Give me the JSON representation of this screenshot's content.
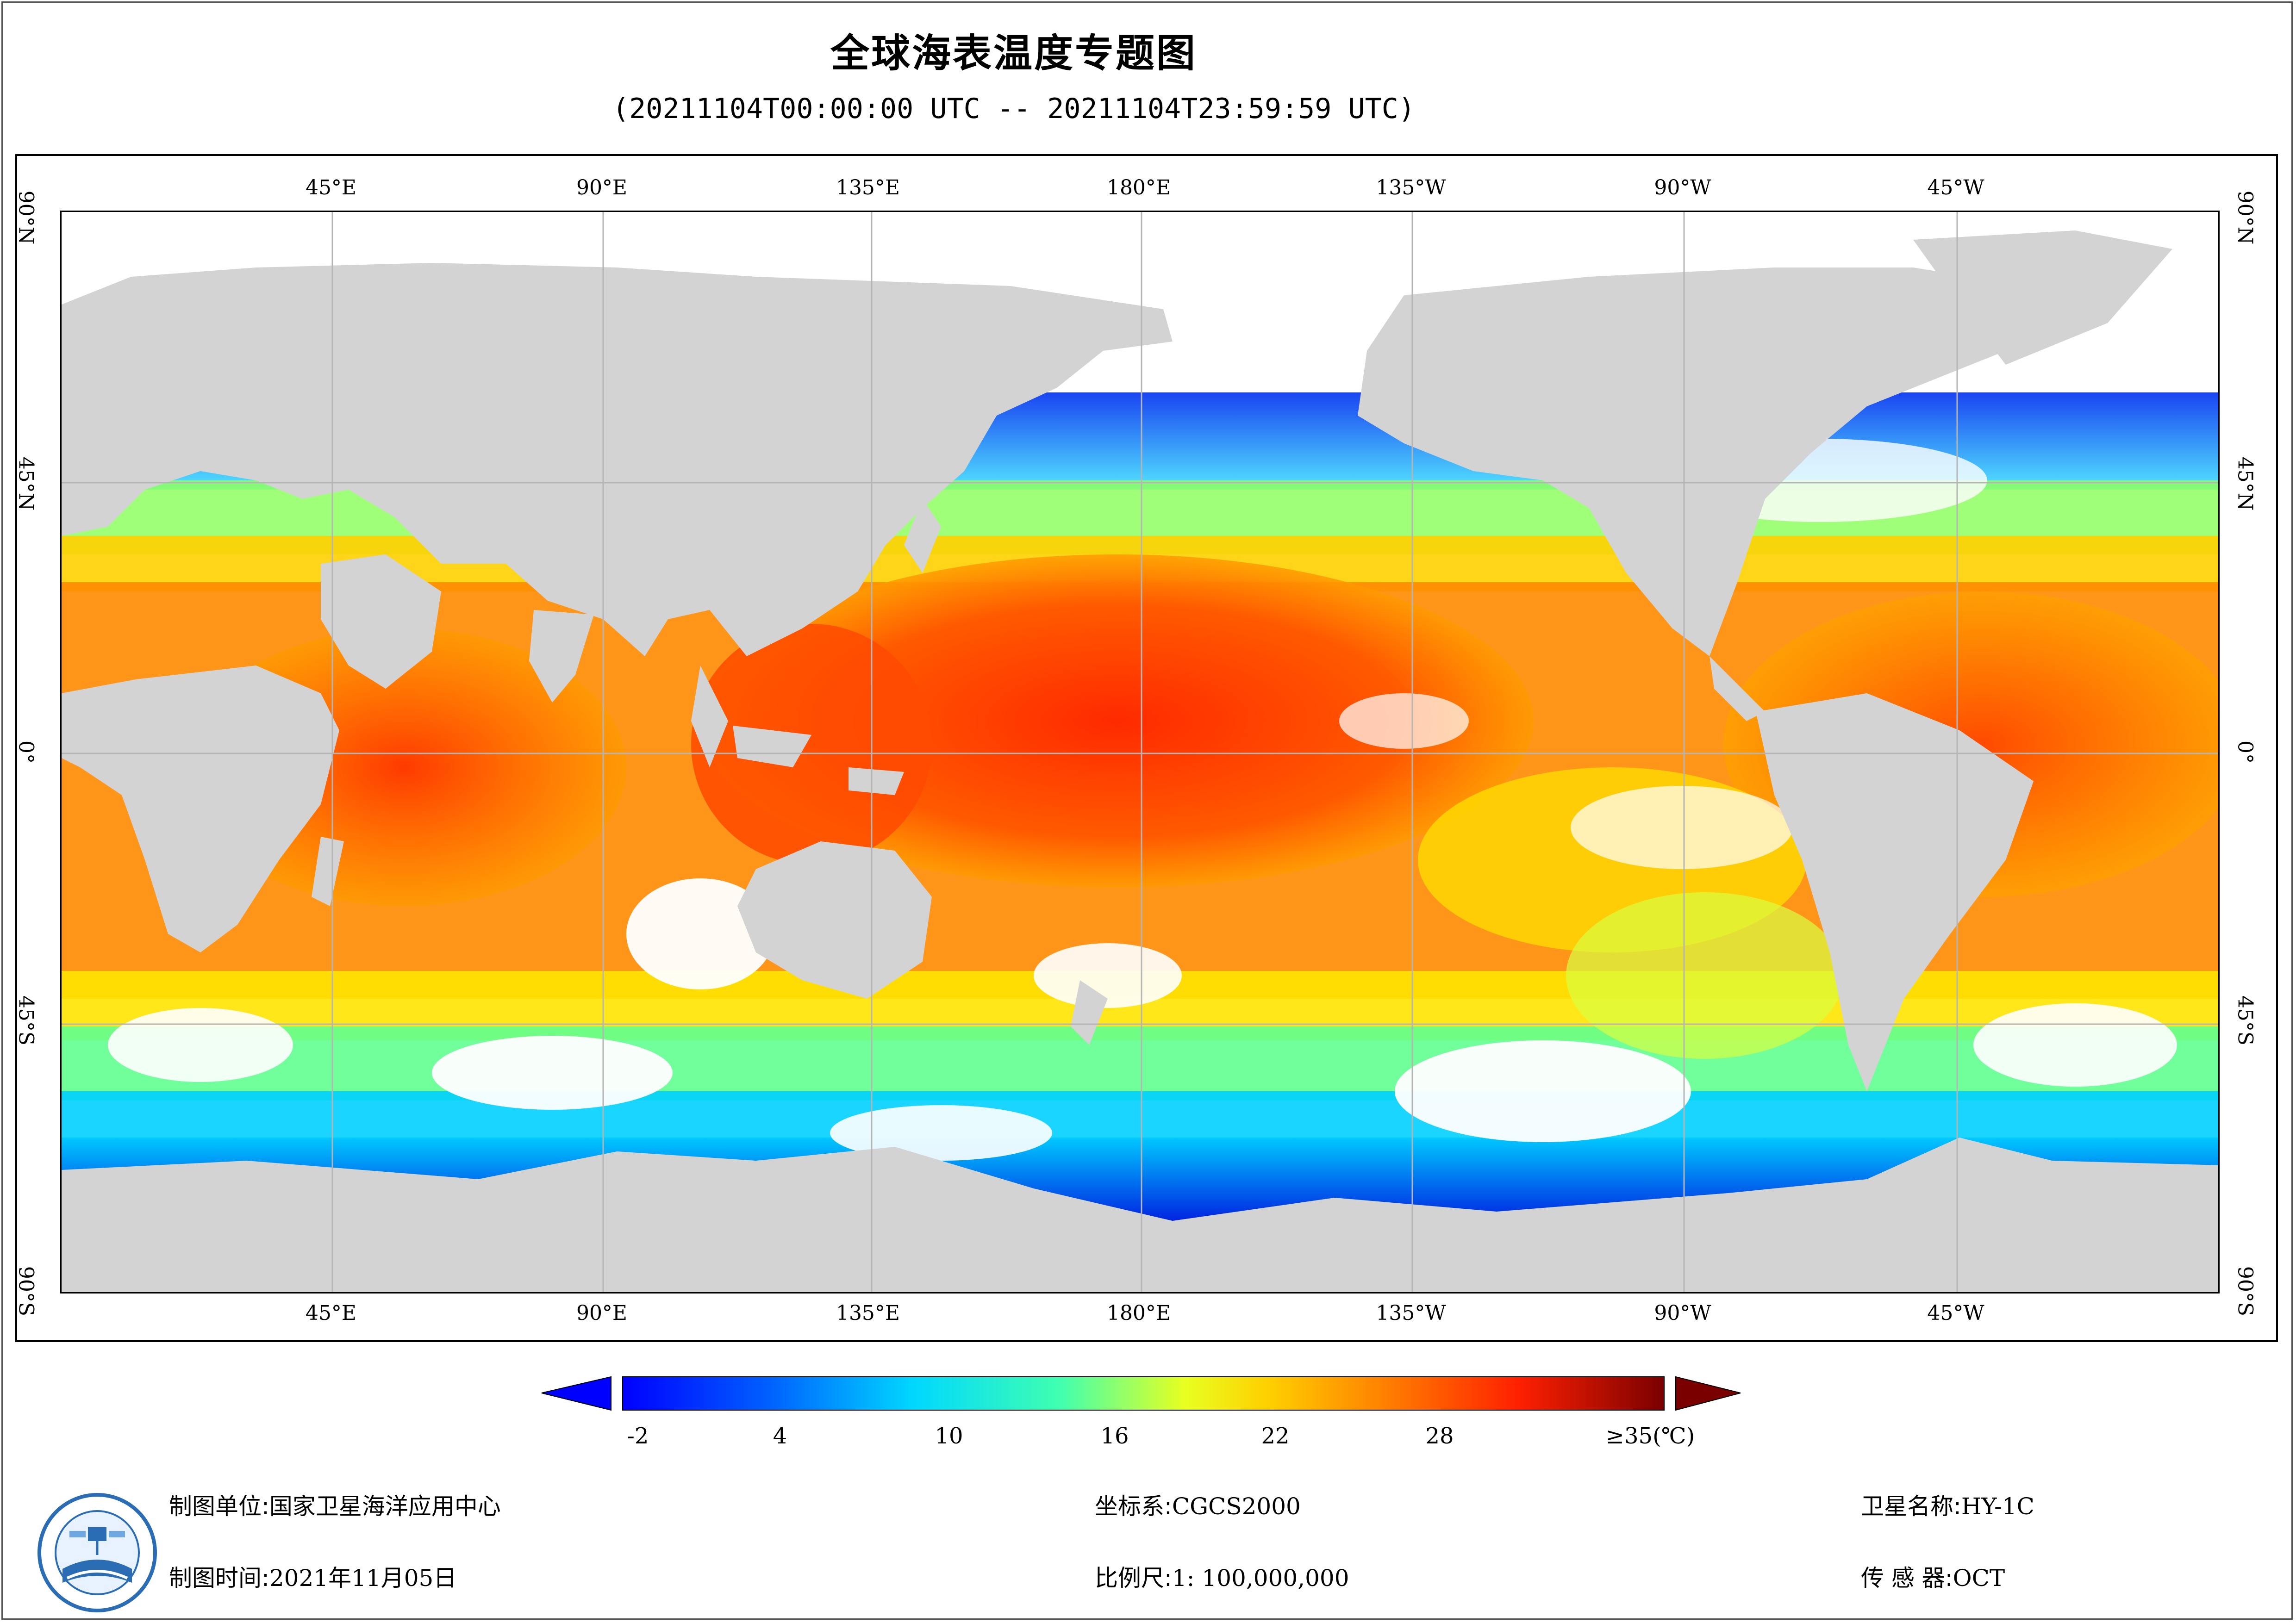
{
  "header": {
    "title": "全球海表温度专题图",
    "subtitle": "(20211104T00:00:00 UTC -- 20211104T23:59:59 UTC)"
  },
  "map": {
    "lon_labels": [
      "45°E",
      "90°E",
      "135°E",
      "180°E",
      "135°W",
      "90°W",
      "45°W"
    ],
    "lat_labels": [
      "90°N",
      "45°N",
      "0°",
      "45°S",
      "90°S"
    ],
    "colors": {
      "land": "#d3d3d3",
      "no_data": "#ffffff",
      "grid": "#b5b5b5"
    }
  },
  "legend": {
    "tick_values": [
      "-2",
      "4",
      "10",
      "16",
      "22",
      "28",
      "≥35(℃)"
    ],
    "colors": [
      "#0000ff",
      "#00c8ff",
      "#00ffd0",
      "#c8ff40",
      "#ffff00",
      "#ff9a00",
      "#ff2a00",
      "#7a0000"
    ]
  },
  "footer": {
    "unit_label": "制图单位:",
    "unit_value": "国家卫星海洋应用中心",
    "time_label": "制图时间:",
    "time_value": "2021年11月05日",
    "crs_label": "坐标系:",
    "crs_value": "CGCS2000",
    "scale_label": "比例尺:",
    "scale_value": "1: 100,000,000",
    "satellite_label": "卫星名称:",
    "satellite_value": "HY-1C",
    "sensor_label": "传 感 器:",
    "sensor_value": "OCT",
    "logo_icon": "national-satellite-ocean-center-logo"
  }
}
